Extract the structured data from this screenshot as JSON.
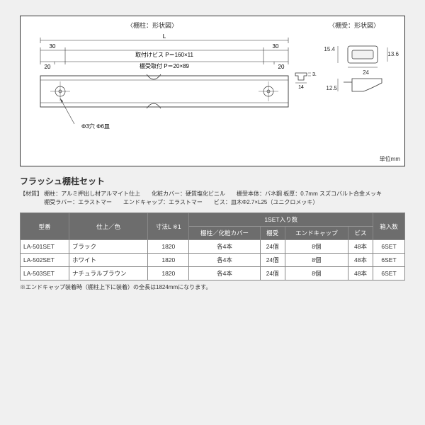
{
  "diagram": {
    "title_left": "〈棚柱：形状図〉",
    "title_right": "〈棚受：形状図〉",
    "overall_L": "L",
    "left_30": "30",
    "right_30": "30",
    "left_20": "20",
    "right_20": "20",
    "pitch_160": "取付けビス P＝160×11",
    "pitch_89": "棚受取付 P＝20×89",
    "hole": "Φ3穴 Φ6皿",
    "t35": "3.5",
    "t14": "14",
    "b154": "15.4",
    "b136": "13.6",
    "b24": "24",
    "b125": "12.5",
    "unit": "単位mm"
  },
  "section_title": "フラッシュ棚柱セット",
  "materials_l1": "【材質】 棚柱：アルミ押出し材アルマイト仕上　　化粧カバー：硬質塩化ビニル　　棚受本体：バネ鋼 板厚：0.7mm スズコバルト合金メッキ",
  "materials_l2": "　　　　 棚受ラバー：エラストマー　　エンドキャップ：エラストマー　　ビス：皿木Φ2.7×L25（ユニクロメッキ）",
  "table": {
    "group_header": "1SET入り数",
    "headers": [
      "型番",
      "仕上／色",
      "寸法L ※1",
      "棚柱／化粧カバー",
      "棚受",
      "エンドキャップ",
      "ビス",
      "箱入数"
    ],
    "rows": [
      [
        "LA-501SET",
        "ブラック",
        "1820",
        "各4本",
        "24個",
        "8個",
        "48本",
        "6SET"
      ],
      [
        "LA-502SET",
        "ホワイト",
        "1820",
        "各4本",
        "24個",
        "8個",
        "48本",
        "6SET"
      ],
      [
        "LA-503SET",
        "ナチュラルブラウン",
        "1820",
        "各4本",
        "24個",
        "8個",
        "48本",
        "6SET"
      ]
    ]
  },
  "footnote": "※エンドキャップ装着時（棚柱上下に装着）の全長は1824mmになります。"
}
